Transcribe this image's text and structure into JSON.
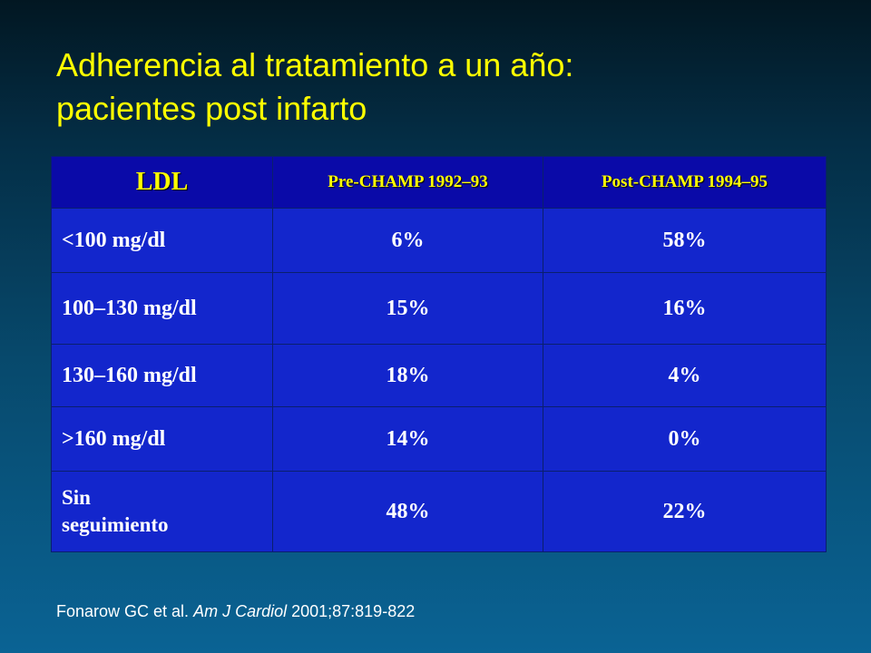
{
  "slide": {
    "title_line1": "Adherencia al tratamiento a un año:",
    "title_line2": "pacientes post infarto"
  },
  "table": {
    "headers": [
      "LDL",
      "Pre-CHAMP 1992–93",
      "Post-CHAMP 1994–95"
    ],
    "rows": [
      {
        "label": "<100 mg/dl",
        "pre": "6%",
        "post": "58%"
      },
      {
        "label": "100–130 mg/dl",
        "pre": "15%",
        "post": "16%"
      },
      {
        "label": "130–160 mg/dl",
        "pre": "18%",
        "post": "4%"
      },
      {
        "label": ">160 mg/dl",
        "pre": "14%",
        "post": "0%"
      },
      {
        "label_line1": "Sin",
        "label_line2": "seguimiento",
        "pre": "48%",
        "post": "22%"
      }
    ]
  },
  "citation": {
    "authors": "Fonarow GC et al. ",
    "journal": "Am J Cardiol",
    "details": " 2001;87:819-822"
  },
  "colors": {
    "title": "#ffff00",
    "header_fill": "#0a0aa8",
    "cell_fill": "#1326cc",
    "background_top": "#021722",
    "background_bottom": "#0a6394"
  }
}
